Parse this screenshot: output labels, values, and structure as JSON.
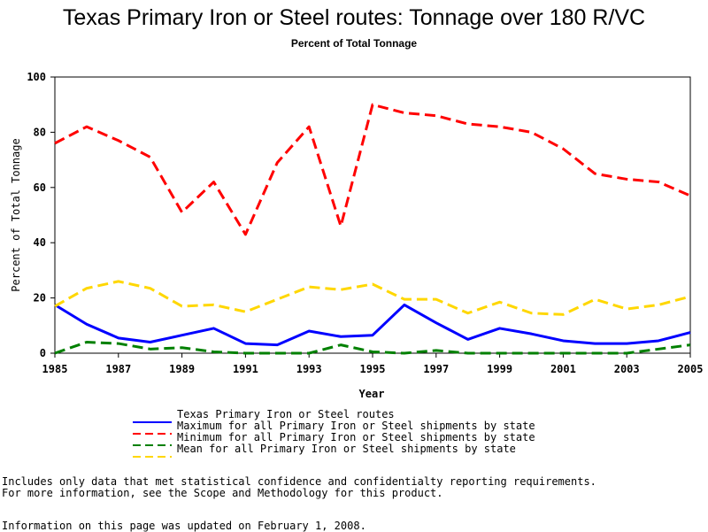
{
  "header": {
    "title": "Texas Primary Iron or Steel routes: Tonnage over 180 R/VC",
    "subtitle": "Percent of Total Tonnage"
  },
  "chart_data": {
    "type": "line",
    "xlabel": "Year",
    "ylabel": "Percent of Total Tonnage",
    "xlim": [
      1985,
      2005
    ],
    "ylim": [
      0,
      100
    ],
    "x_ticks": [
      "1985",
      "1987",
      "1989",
      "1991",
      "1993",
      "1995",
      "1997",
      "1999",
      "2001",
      "2003",
      "2005"
    ],
    "y_ticks": [
      "0",
      "20",
      "40",
      "60",
      "80",
      "100"
    ],
    "x": [
      1985,
      1986,
      1987,
      1988,
      1989,
      1990,
      1991,
      1992,
      1993,
      1994,
      1995,
      1996,
      1997,
      1998,
      1999,
      2000,
      2001,
      2002,
      2003,
      2004,
      2005
    ],
    "series": [
      {
        "name": "Texas Primary Iron or Steel routes",
        "color": "#0000ff",
        "dash": "solid",
        "values": [
          17.5,
          10.5,
          5.5,
          4,
          6.5,
          9,
          3.5,
          3,
          8,
          6,
          6.5,
          17.5,
          11,
          5,
          9,
          7,
          4.5,
          3.5,
          3.5,
          4.5,
          7.5
        ]
      },
      {
        "name": "Maximum for all Primary Iron or Steel shipments by state",
        "color": "#ff0000",
        "dash": "dashed",
        "values": [
          76,
          82,
          77,
          71,
          51,
          62,
          43,
          69,
          82,
          46,
          90,
          87,
          86,
          83,
          82,
          80,
          74,
          65,
          63,
          62,
          57
        ]
      },
      {
        "name": "Minimum for all Primary Iron or Steel shipments by state",
        "color": "#008000",
        "dash": "dashed",
        "values": [
          0,
          4,
          3.5,
          1.5,
          2,
          0.5,
          0,
          0,
          0,
          3,
          0.5,
          0,
          1,
          0,
          0,
          0,
          0,
          0,
          0,
          1.5,
          3
        ]
      },
      {
        "name": "Mean for all Primary Iron or Steel shipments by state",
        "color": "#ffd700",
        "dash": "dashed",
        "values": [
          17,
          23.5,
          26,
          23.5,
          17,
          17.5,
          15,
          19.5,
          24,
          23,
          25,
          19.5,
          19.5,
          14.5,
          18.5,
          14.5,
          14,
          19.5,
          16,
          17.5,
          20.5
        ]
      }
    ]
  },
  "notes": {
    "line1": "Includes only data that met statistical confidence and confidentialty reporting requirements.",
    "line2": "For more information, see the Scope and Methodology for this product.",
    "line3": "Information on this page was updated on February 1, 2008."
  }
}
